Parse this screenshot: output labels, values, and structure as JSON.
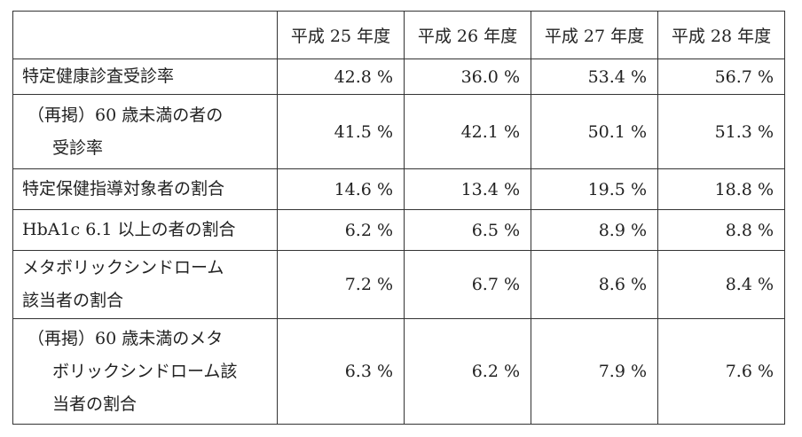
{
  "table": {
    "header": [
      "平成 25 年度",
      "平成 26 年度",
      "平成 27 年度",
      "平成 28 年度"
    ],
    "rows": [
      {
        "label": [
          "特定健康診査受診率"
        ],
        "values": [
          "42.8 %",
          "36.0 %",
          "53.4 %",
          "56.7 %"
        ]
      },
      {
        "label": [
          "（再掲）60 歳未満の者の",
          "受診率"
        ],
        "values": [
          "41.5 %",
          "42.1 %",
          "50.1 %",
          "51.3 %"
        ]
      },
      {
        "label": [
          "特定保健指導対象者の割合"
        ],
        "values": [
          "14.6 %",
          "13.4 %",
          "19.5 %",
          "18.8 %"
        ]
      },
      {
        "label": [
          "HbA1c 6.1 以上の者の割合"
        ],
        "values": [
          "6.2 %",
          "6.5 %",
          "8.9 %",
          "8.8 %"
        ]
      },
      {
        "label": [
          "メタボリックシンドローム",
          "該当者の割合"
        ],
        "values": [
          "7.2 %",
          "6.7 %",
          "8.6 %",
          "8.4 %"
        ]
      },
      {
        "label": [
          "（再掲）60 歳未満のメタ",
          "ボリックシンドローム該",
          "当者の割合"
        ],
        "values": [
          "6.3 %",
          "6.2 %",
          "7.9 %",
          "7.6 %"
        ]
      }
    ]
  }
}
